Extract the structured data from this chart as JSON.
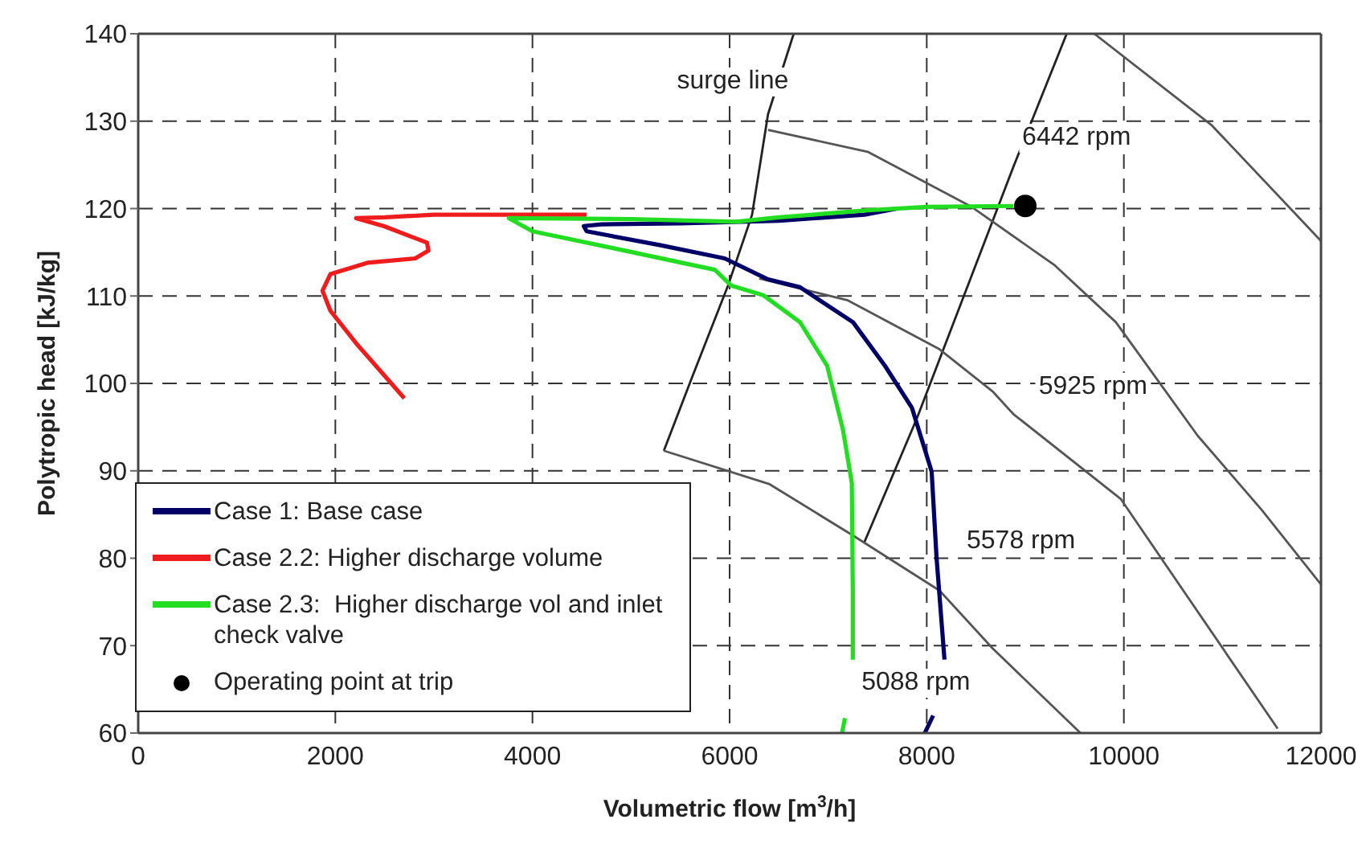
{
  "chart_data": {
    "type": "line",
    "xlabel": "Volumetric flow [m$^{3}$/h]",
    "ylabel": "Polytropic head [kJ/kg]",
    "xlim": [
      0,
      12000
    ],
    "xticks": [
      0,
      2000,
      4000,
      6000,
      8000,
      10000,
      12000
    ],
    "ylim": [
      60,
      140
    ],
    "yticks": [
      60,
      70,
      80,
      90,
      100,
      110,
      120,
      130,
      140
    ],
    "grid": true,
    "legend": "bottom left",
    "marker": "none",
    "series": [
      {
        "type": "line",
        "color": "#222222",
        "x": [
          5333,
          5626,
          5984,
          6228,
          6390,
          6650
        ],
        "values": [
          92.3,
          100.9,
          111.2,
          119.3,
          130.8,
          140
        ]
      },
      {
        "type": "line",
        "color": "#222222",
        "x": [
          7366,
          7900,
          8880,
          9420
        ],
        "values": [
          81.8,
          96,
          124.8,
          140
        ]
      },
      {
        "type": "line",
        "color": "#555555",
        "x": [
          9700,
          10894,
          12000
        ],
        "values": [
          140,
          129.5,
          116.3
        ]
      },
      {
        "type": "line",
        "color": "#555555",
        "x": [
          6390,
          7400,
          8455,
          9300,
          9919,
          10750,
          11400,
          12000
        ],
        "values": [
          129,
          126.5,
          120.2,
          113.5,
          107,
          94,
          85.5,
          77
        ]
      },
      {
        "type": "line",
        "color": "#555555",
        "x": [
          6300,
          7200,
          8130,
          8667,
          8878,
          9967,
          11560
        ],
        "values": [
          112,
          109.5,
          103.9,
          99.1,
          96.5,
          86.8,
          60.5
        ]
      },
      {
        "type": "line",
        "color": "#555555",
        "x": [
          5333,
          6400,
          7252,
          8130,
          8667,
          9560
        ],
        "values": [
          92.3,
          88.5,
          82.6,
          76.3,
          69.7,
          60
        ]
      },
      {
        "type": "line",
        "name": "Case 1: Base case",
        "color": "#000066",
        "x": [
          7700,
          7366,
          6500,
          5500,
          4700,
          4520,
          4550,
          5300,
          5950,
          6390,
          6715,
          7252,
          7577,
          7850,
          8050,
          8100,
          8180,
          8120,
          8065,
          7980
        ],
        "values": [
          120,
          119.3,
          118.6,
          118.3,
          118.2,
          118,
          117.4,
          115.8,
          114.3,
          111.9,
          111,
          107,
          102,
          97.2,
          89.9,
          80,
          68.4,
          null,
          62,
          60
        ]
      },
      {
        "type": "line",
        "name": "Case 2.2: Higher discharge volume",
        "color": "#ee1c1c",
        "x": [
          4550,
          3000,
          2500,
          2210,
          2490,
          2930,
          2945,
          2810,
          2325,
          1950,
          1870,
          1950,
          2210,
          2700
        ],
        "values": [
          119.3,
          119.3,
          119,
          118.9,
          118,
          116.1,
          115.2,
          114.3,
          113.8,
          112.5,
          110.6,
          108.3,
          104.6,
          98.3
        ]
      },
      {
        "type": "line",
        "name": "Case 2.3:  Higher discharge vol and inlet check valve",
        "color": "#22dd22",
        "x": [
          8880,
          8000,
          7400,
          6500,
          6065,
          5000,
          3760,
          4000,
          4765,
          5850,
          6015,
          6340,
          6715,
          6990,
          7150,
          7240,
          7250,
          7250,
          7210,
          7170,
          7140
        ],
        "values": [
          120.3,
          120.2,
          119.8,
          119,
          118.5,
          118.8,
          118.9,
          117.4,
          115.6,
          113,
          111.2,
          110.1,
          107,
          102,
          94.7,
          88.6,
          76.3,
          68.4,
          null,
          61.7,
          60
        ]
      },
      {
        "type": "scatter",
        "name": "Operating point at trip",
        "color": "#000000",
        "marker": "circle",
        "x": [
          9000
        ],
        "values": [
          120.3
        ]
      }
    ],
    "annotations": [
      "surge line",
      "6442 rpm",
      "5925 rpm",
      "5578 rpm",
      "5088 rpm"
    ]
  }
}
